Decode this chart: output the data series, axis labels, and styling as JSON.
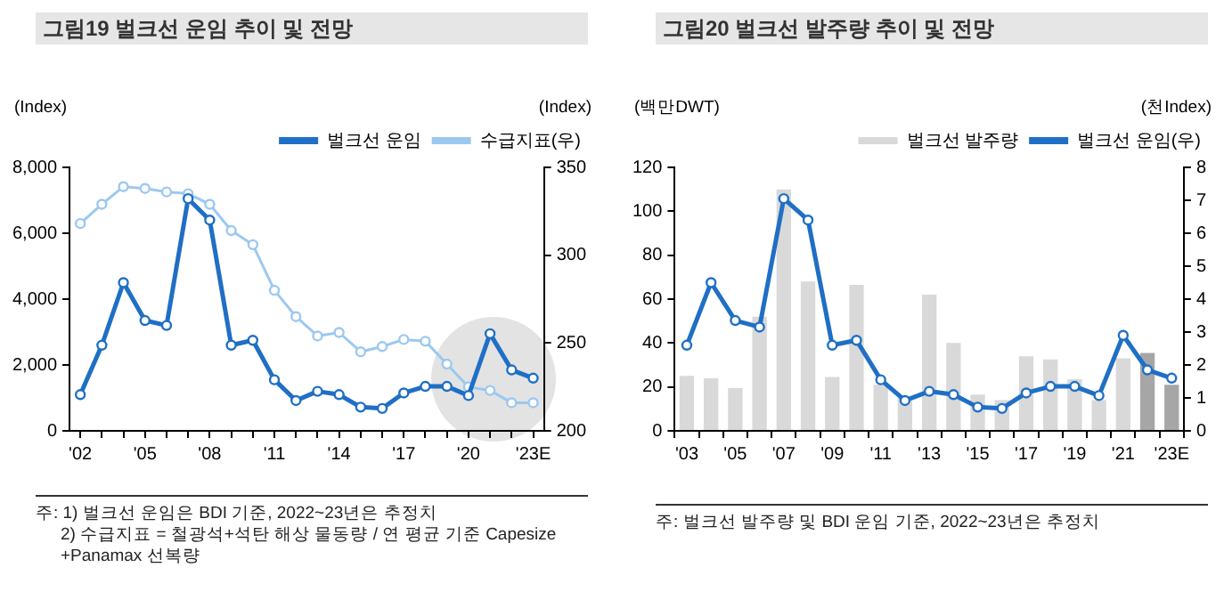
{
  "chart_data": [
    {
      "type": "line",
      "title": "그림19 벌크선 운임 추이 및 전망",
      "ylabel": "(Index)",
      "y2label": "(Index)",
      "categories": [
        "'02",
        null,
        null,
        "'05",
        null,
        null,
        "'08",
        null,
        null,
        "'11",
        null,
        null,
        "'14",
        null,
        null,
        "'17",
        null,
        null,
        "'20",
        null,
        null,
        "'23E"
      ],
      "series": [
        {
          "name": "벌크선 운임",
          "type": "line",
          "color": "#1f6fc5",
          "values": [
            1100,
            2600,
            4500,
            3350,
            3200,
            7050,
            6400,
            2600,
            2750,
            1550,
            920,
            1200,
            1100,
            720,
            680,
            1150,
            1350,
            1350,
            1070,
            2950,
            1850,
            1600
          ]
        },
        {
          "name": "수급지표(우)",
          "type": "line",
          "axis": "y2",
          "color": "#9cc8f0",
          "values": [
            318,
            329,
            339,
            338,
            336,
            335,
            329,
            314,
            306,
            280,
            265,
            254,
            256,
            245,
            248,
            252,
            251,
            238,
            225,
            223,
            216,
            216
          ]
        }
      ],
      "ylim": [
        0,
        8000
      ],
      "yticks": [
        {
          "value": 0,
          "label": "0"
        },
        {
          "value": 2000,
          "label": "2,000"
        },
        {
          "value": 4000,
          "label": "4,000"
        },
        {
          "value": 6000,
          "label": "6,000"
        },
        {
          "value": 8000,
          "label": "8,000"
        }
      ],
      "y2lim": [
        200,
        350
      ],
      "y2ticks": [
        200,
        250,
        300,
        350
      ],
      "marker": "circle",
      "grid": false,
      "legend": "top right",
      "annotations": [
        "주: 1) 벌크선 운임은 BDI 기준, 2022~23년은 추정치",
        "2) 수급지표 = 철광석+석탄 해상 물동량 / 연 평균 기준 Capesize +Panamax 선복량"
      ]
    },
    {
      "type": "bar",
      "title": "그림20 벌크선 발주량 추이 및 전망",
      "ylabel": "(백만DWT)",
      "y2label": "(천Index)",
      "categories": [
        "'03",
        null,
        "'05",
        null,
        "'07",
        null,
        "'09",
        null,
        "'11",
        null,
        "'13",
        null,
        "'15",
        null,
        "'17",
        null,
        "'19",
        null,
        "'21",
        null,
        "'23E"
      ],
      "series": [
        {
          "name": "벌크선 발주량",
          "type": "bar",
          "color": "#d9d9d9",
          "colors": [
            "#d9d9d9",
            "#d9d9d9",
            "#d9d9d9",
            "#d9d9d9",
            "#d9d9d9",
            "#d9d9d9",
            "#d9d9d9",
            "#d9d9d9",
            "#d9d9d9",
            "#d9d9d9",
            "#d9d9d9",
            "#d9d9d9",
            "#d9d9d9",
            "#d9d9d9",
            "#d9d9d9",
            "#d9d9d9",
            "#d9d9d9",
            "#d9d9d9",
            "#d9d9d9",
            "#a6a6a6",
            "#a6a6a6"
          ],
          "values": [
            25,
            24,
            19.5,
            52,
            110,
            68,
            24.5,
            66.5,
            21,
            15,
            62,
            40,
            16.5,
            14,
            34,
            32.5,
            23.5,
            14,
            33,
            35.5,
            21
          ]
        },
        {
          "name": "벌크선 운임(우)",
          "type": "line",
          "axis": "y2",
          "color": "#1f6fc5",
          "values": [
            2.6,
            4.5,
            3.35,
            3.15,
            7.05,
            6.4,
            2.6,
            2.75,
            1.55,
            0.92,
            1.2,
            1.1,
            0.72,
            0.68,
            1.15,
            1.35,
            1.35,
            1.07,
            2.9,
            1.85,
            1.6
          ]
        }
      ],
      "ylim": [
        0,
        120
      ],
      "yticks": [
        0,
        20,
        40,
        60,
        80,
        100,
        120
      ],
      "y2lim": [
        0,
        8
      ],
      "y2ticks": [
        0,
        1,
        2,
        3,
        4,
        5,
        6,
        7,
        8
      ],
      "marker": "circle",
      "grid": false,
      "legend": "top right",
      "annotations": [
        "주: 벌크선 발주량 및 BDI 운임 기준, 2022~23년은 추정치"
      ]
    }
  ]
}
